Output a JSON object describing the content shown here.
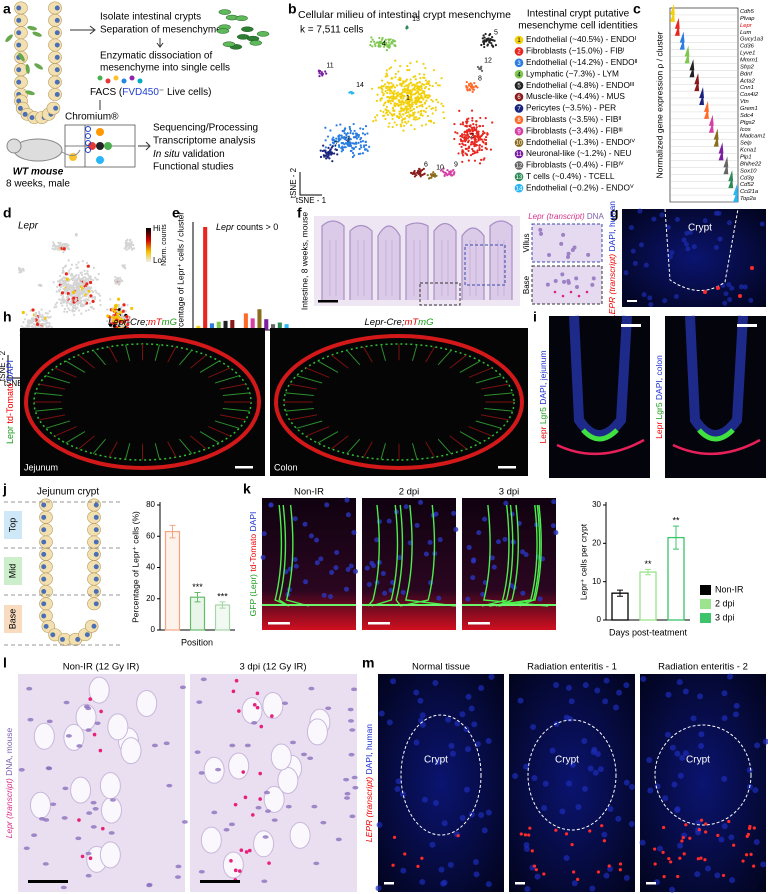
{
  "figure": {
    "a": {
      "letter": "a",
      "steps_top": [
        "Isolate intestinal crypts",
        "Separation of mesenchyme"
      ],
      "steps_mid": [
        "Enzymatic dissociation of",
        "mesenchyme into single cells"
      ],
      "facs": [
        "FACS (",
        "FVD450",
        "⁻ Live cells)"
      ],
      "chip": "Chromium®",
      "mouse": [
        "WT mouse",
        "8 weeks, male"
      ],
      "steps_out": [
        "Sequencing/Processing",
        "Transcriptome analysis",
        "In situ",
        " validation",
        "Functional studies"
      ]
    },
    "b": {
      "letter": "b",
      "title": "Cellular milieu of intestinal crypt mesenchyme",
      "count": "k = 7,511 cells",
      "xlabel": "tSNE - 1",
      "ylabel": "tSNE - 2",
      "legend_title": [
        "Intestinal crypt putative",
        "mesenchyme cell identities"
      ],
      "legend": [
        {
          "id": 1,
          "label": "Endothelial (~40.5%) - ENDOᴵ",
          "color": "#f2d00c"
        },
        {
          "id": 2,
          "label": "Fibroblasts (~15.0%) - FIBᴵ",
          "color": "#e8261f"
        },
        {
          "id": 3,
          "label": "Endothelial (~14.2%) - ENDOᴵᴵ",
          "color": "#2a7de1"
        },
        {
          "id": 4,
          "label": "Lymphatic (~7.3%) - LYM",
          "color": "#7ec850"
        },
        {
          "id": 5,
          "label": "Endothelial (~4.8%) - ENDOᴵᴵᴵ",
          "color": "#222222"
        },
        {
          "id": 6,
          "label": "Muscle-like (~4.4%) - MUS",
          "color": "#8b1a1a"
        },
        {
          "id": 7,
          "label": "Pericytes (~3.5%) - PER",
          "color": "#1a237e"
        },
        {
          "id": 8,
          "label": "Fibroblasts (~3.5%) - FIBᴵᴵ",
          "color": "#ff6a2a"
        },
        {
          "id": 9,
          "label": "Fibroblasts (~3.4%) - FIBᴵᴵᴵ",
          "color": "#d63fa5"
        },
        {
          "id": 10,
          "label": "Endothelial (~1.3%) - ENDOᴵⱽ",
          "color": "#8a6d1e"
        },
        {
          "id": 11,
          "label": "Neuronal-like (~1.2%) - NEU",
          "color": "#7b1fa2"
        },
        {
          "id": 12,
          "label": "Fibroblasts (~0.4%) - FIBᴵⱽ",
          "color": "#666666"
        },
        {
          "id": 13,
          "label": "T cells (~0.4%) - TCELL",
          "color": "#2e8b57"
        },
        {
          "id": 14,
          "label": "Endothelial (~0.2%) - ENDOⱽ",
          "color": "#29b6f6"
        }
      ]
    },
    "c": {
      "letter": "c",
      "ylabel": "Normalized gene expression ρ / cluster",
      "genes": [
        "Cdh5",
        "Plvap",
        "Lepr",
        "Lum",
        "Gucy1a3",
        "Cd36",
        "Lyve1",
        "Mmrn1",
        "Sfrp2",
        "Bdnf",
        "Acta2",
        "Cnn1",
        "Cox4i2",
        "Vtn",
        "Grem1",
        "Sdc4",
        "Ptgs2",
        "Icos",
        "Madcam1",
        "Selp",
        "Kcna1",
        "Plp1",
        "Bhlhe22",
        "Sox10",
        "Cd3g",
        "Cd52",
        "Ccl21a",
        "Top2a"
      ]
    },
    "d": {
      "letter": "d",
      "title": "Lepr",
      "scale_high": "Hi",
      "scale_low": "Lo",
      "scale_label": "Norm. counts",
      "xlabel": "tSNE - 1",
      "ylabel": "tSNE - 2"
    },
    "e": {
      "letter": "e",
      "type": "bar",
      "title": [
        "Lepr",
        " counts > 0"
      ],
      "ylabel": "Percentage of Lepr⁺ cells / cluster",
      "xlabel": "Cell identity",
      "values": [
        2.5,
        62,
        4,
        5,
        5.5,
        6,
        1,
        10,
        7,
        12.5,
        6.5,
        3.5,
        4.5,
        3.5
      ],
      "ylim": [
        0,
        65
      ]
    },
    "f": {
      "letter": "f",
      "side": "Intestine, 8 weeks, mouse",
      "stain": [
        "Lepr (transcript)",
        " DNA"
      ],
      "insets": [
        "Villus",
        "Base"
      ]
    },
    "g": {
      "letter": "g",
      "crypt": "Crypt",
      "side": [
        "LEPR (transcript)",
        " DAPI, human"
      ]
    },
    "h": {
      "letter": "h",
      "title": [
        "Lepr-Cre;",
        "mT",
        "mG"
      ],
      "side": [
        "Lepr",
        " td-Tomato",
        " DAPI"
      ],
      "panels": [
        "Jejunum",
        "Colon"
      ]
    },
    "i": {
      "letter": "i",
      "left": [
        "Lepr",
        " Lgr5",
        " DAPI, jejunum"
      ],
      "right": [
        "Lepr",
        " Lgr5",
        " DAPI, colon"
      ]
    },
    "j": {
      "letter": "j",
      "title": "Jejunum crypt",
      "zones": [
        "Top",
        "Mid",
        "Base"
      ],
      "chart": {
        "type": "bar",
        "values": [
          63,
          21,
          16
        ],
        "errors": [
          4,
          3,
          2
        ],
        "significance": [
          null,
          "***",
          "***"
        ],
        "colors": [
          "#f4a582",
          "#66bb6a",
          "#a5d6a7"
        ],
        "ylim": [
          0,
          80
        ],
        "yticks": [
          0,
          20,
          40,
          60,
          80
        ],
        "ylabel": "Percentage of Lepr⁺ cells (%)",
        "xlabel": "Position"
      }
    },
    "k": {
      "letter": "k",
      "images": [
        "Non-IR",
        "2 dpi",
        "3 dpi"
      ],
      "side": [
        "GFP (Lepr)",
        " td-Tomato",
        " DAPI"
      ],
      "chart": {
        "type": "bar",
        "series": [
          {
            "name": "Non-IR",
            "color": "#000000",
            "values": [
              7
            ],
            "errors": [
              0.8
            ]
          },
          {
            "name": "2 dpi",
            "color": "#9be38c",
            "values": [
              12.5
            ],
            "errors": [
              0.7
            ]
          },
          {
            "name": "3 dpi",
            "color": "#3cc46b",
            "values": [
              21.5
            ],
            "errors": [
              3
            ]
          }
        ],
        "significance": [
          null,
          "**",
          "**"
        ],
        "ylim": [
          0,
          30
        ],
        "yticks": [
          0,
          10,
          20,
          30
        ],
        "ylabel": "Lepr⁺ cells per crypt",
        "xlabel": "Days post-teatment"
      }
    },
    "l": {
      "letter": "l",
      "images": [
        "Non-IR (12 Gy IR)",
        "3 dpi (12 Gy IR)"
      ],
      "side": [
        "Lepr (transcript)",
        " DNA, mouse"
      ]
    },
    "m": {
      "letter": "m",
      "images": [
        "Normal tissue",
        "Radiation enteritis - 1",
        "Radiation enteritis - 2"
      ],
      "crypt": "Crypt",
      "side": [
        "LEPR (transcript)",
        " DAPI, human"
      ]
    }
  }
}
